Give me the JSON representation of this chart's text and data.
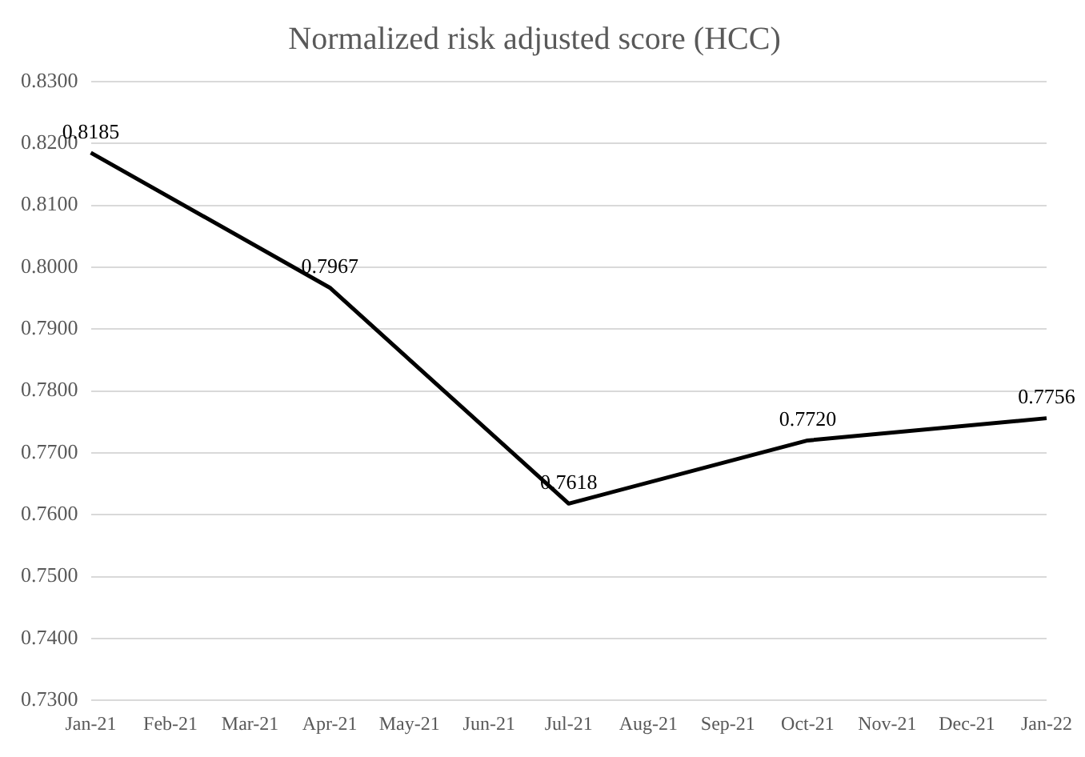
{
  "chart_data": {
    "type": "line",
    "title": "Normalized risk adjusted score (HCC)",
    "categories": [
      "Jan-21",
      "Feb-21",
      "Mar-21",
      "Apr-21",
      "May-21",
      "Jun-21",
      "Jul-21",
      "Aug-21",
      "Sep-21",
      "Oct-21",
      "Nov-21",
      "Dec-21",
      "Jan-22"
    ],
    "series": [
      {
        "color": "#000000",
        "values": [
          0.8185,
          null,
          null,
          0.7967,
          null,
          null,
          0.7618,
          null,
          null,
          0.772,
          null,
          null,
          0.7756
        ],
        "value_labels": [
          "0.8185",
          null,
          null,
          "0.7967",
          null,
          null,
          "0.7618",
          null,
          null,
          "0.7720",
          null,
          null,
          "0.7756"
        ]
      }
    ],
    "ylim": [
      0.73,
      0.83
    ],
    "yticks": [
      {
        "value": 0.73,
        "label": "0.7300"
      },
      {
        "value": 0.74,
        "label": "0.7400"
      },
      {
        "value": 0.75,
        "label": "0.7500"
      },
      {
        "value": 0.76,
        "label": "0.7600"
      },
      {
        "value": 0.77,
        "label": "0.7700"
      },
      {
        "value": 0.78,
        "label": "0.7800"
      },
      {
        "value": 0.79,
        "label": "0.7900"
      },
      {
        "value": 0.8,
        "label": "0.8000"
      },
      {
        "value": 0.81,
        "label": "0.8100"
      },
      {
        "value": 0.82,
        "label": "0.8200"
      },
      {
        "value": 0.83,
        "label": "0.8300"
      }
    ],
    "grid": "y",
    "marker": "none",
    "line_style": "solid",
    "legend": false
  }
}
